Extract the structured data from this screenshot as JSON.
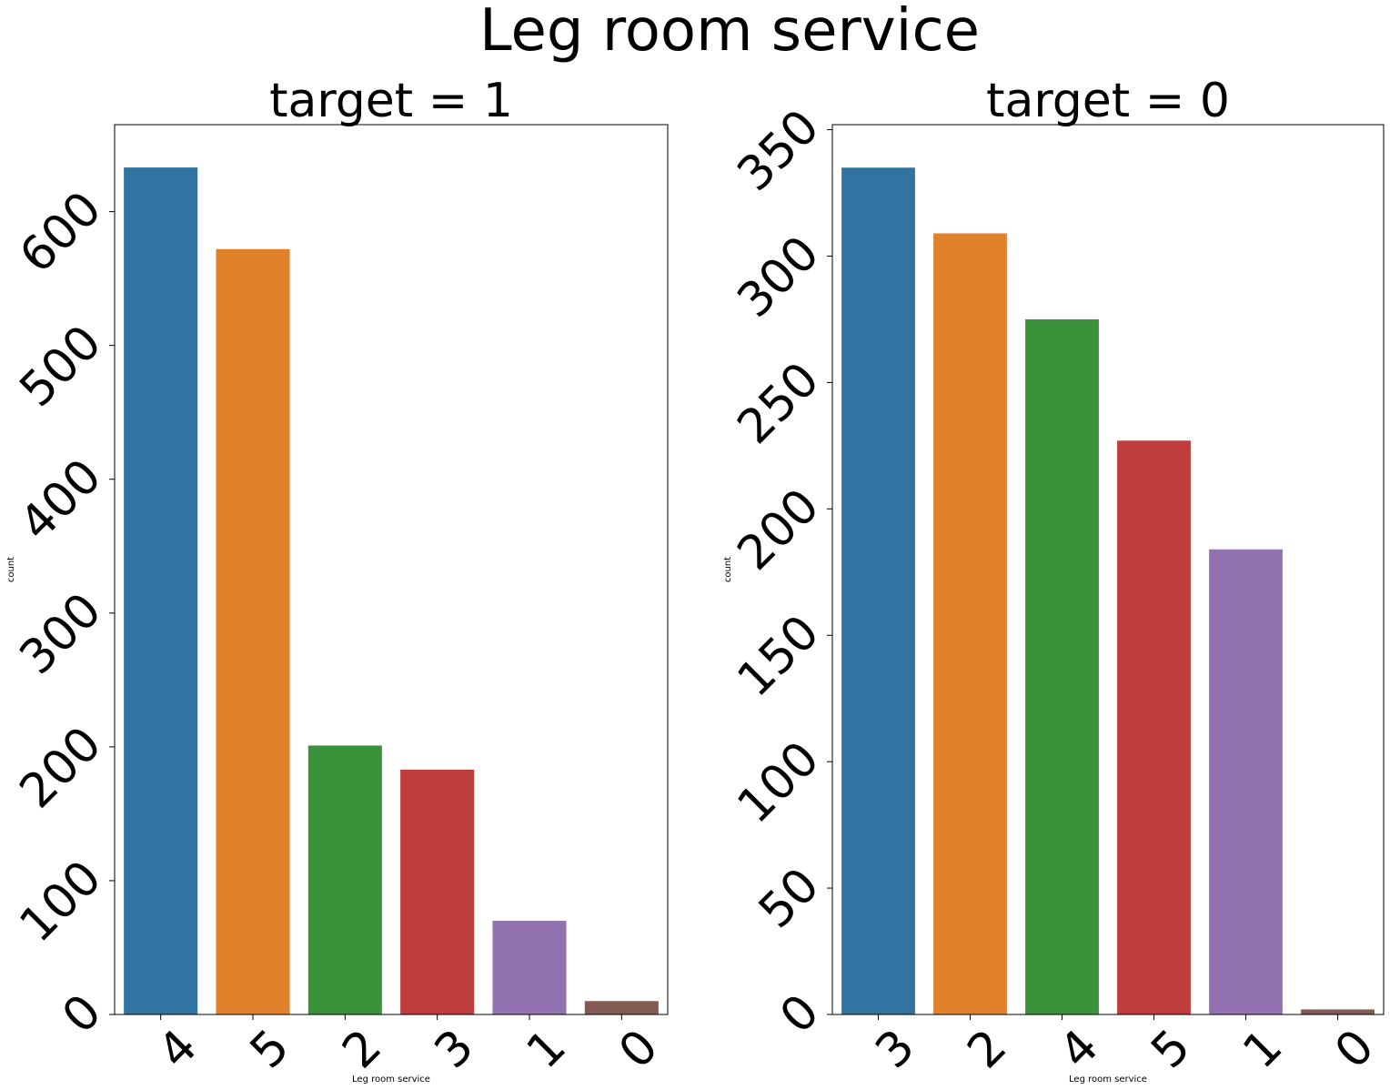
{
  "figure": {
    "suptitle": "Leg room service"
  },
  "chart_data": [
    {
      "type": "bar",
      "title": "target = 1",
      "xlabel": "Leg room service",
      "ylabel": "count",
      "categories": [
        "4",
        "5",
        "2",
        "3",
        "1",
        "0"
      ],
      "values": [
        633,
        572,
        201,
        183,
        70,
        10
      ],
      "ylim": [
        0,
        665
      ],
      "yticks": [
        0,
        100,
        200,
        300,
        400,
        500,
        600
      ],
      "colors": [
        "#3274a1",
        "#e1812c",
        "#3a923a",
        "#c03d3e",
        "#9372b2",
        "#845b53"
      ],
      "grid": false,
      "legend": "none"
    },
    {
      "type": "bar",
      "title": "target = 0",
      "xlabel": "Leg room service",
      "ylabel": "count",
      "categories": [
        "3",
        "2",
        "4",
        "5",
        "1",
        "0"
      ],
      "values": [
        335,
        309,
        275,
        227,
        184,
        2
      ],
      "ylim": [
        0,
        352
      ],
      "yticks": [
        0,
        50,
        100,
        150,
        200,
        250,
        300,
        350
      ],
      "colors": [
        "#3274a1",
        "#e1812c",
        "#3a923a",
        "#c03d3e",
        "#9372b2",
        "#845b53"
      ],
      "grid": false,
      "legend": "none"
    }
  ]
}
